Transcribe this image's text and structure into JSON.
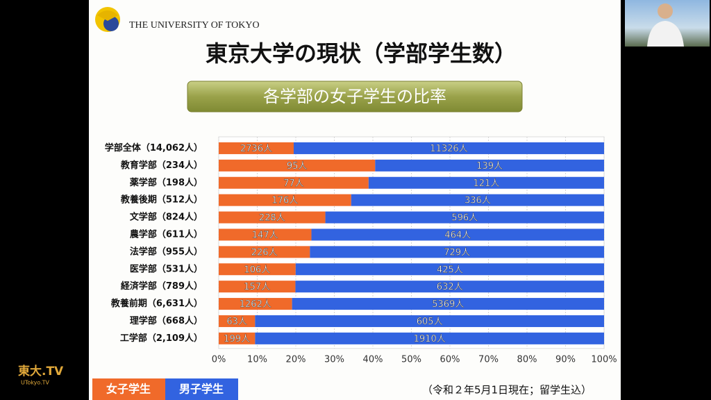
{
  "header": {
    "logo_text": "THE UNIVERSITY OF TOKYO",
    "channel_logo": "東大.TV",
    "channel_url": "UTokyo.TV"
  },
  "chart_data": {
    "type": "bar",
    "orientation": "horizontal",
    "stacking": "percent",
    "title": "東京大学の現状（学部学生数）",
    "subtitle": "各学部の女子学生の比率",
    "note": "（令和２年5月1日現在；留学生込）",
    "categories": [
      "学部全体（14,062人）",
      "教育学部（234人）",
      "薬学部（198人）",
      "教養後期（512人）",
      "文学部（824人）",
      "農学部（611人）",
      "法学部（955人）",
      "医学部（531人）",
      "経済学部（789人）",
      "教養前期（6,631人）",
      "理学部（668人）",
      "工学部（2,109人）"
    ],
    "series": [
      {
        "name": "女子学生",
        "color": "#f06a2a",
        "values": [
          2736,
          95,
          77,
          176,
          228,
          147,
          226,
          106,
          157,
          1262,
          63,
          199
        ],
        "value_labels": [
          "2736人",
          "95人",
          "77人",
          "176人",
          "228人",
          "147人",
          "226人",
          "106人",
          "157人",
          "1262人",
          "63人",
          "199人"
        ]
      },
      {
        "name": "男子学生",
        "color": "#3263e0",
        "values": [
          11326,
          139,
          121,
          336,
          596,
          464,
          729,
          425,
          632,
          5369,
          605,
          1910
        ],
        "value_labels": [
          "11326人",
          "139人",
          "121人",
          "336人",
          "596人",
          "464人",
          "729人",
          "425人",
          "632人",
          "5369人",
          "605人",
          "1910人"
        ]
      }
    ],
    "xlim": [
      0,
      100
    ],
    "xticks": [
      {
        "value": 0,
        "label": "0%"
      },
      {
        "value": 10,
        "label": "10%"
      },
      {
        "value": 20,
        "label": "20%"
      },
      {
        "value": 30,
        "label": "30%"
      },
      {
        "value": 40,
        "label": "40%"
      },
      {
        "value": 50,
        "label": "50%"
      },
      {
        "value": 60,
        "label": "60%"
      },
      {
        "value": 70,
        "label": "70%"
      },
      {
        "value": 80,
        "label": "80%"
      },
      {
        "value": 90,
        "label": "90%"
      },
      {
        "value": 100,
        "label": "100%"
      }
    ],
    "grid": true
  }
}
